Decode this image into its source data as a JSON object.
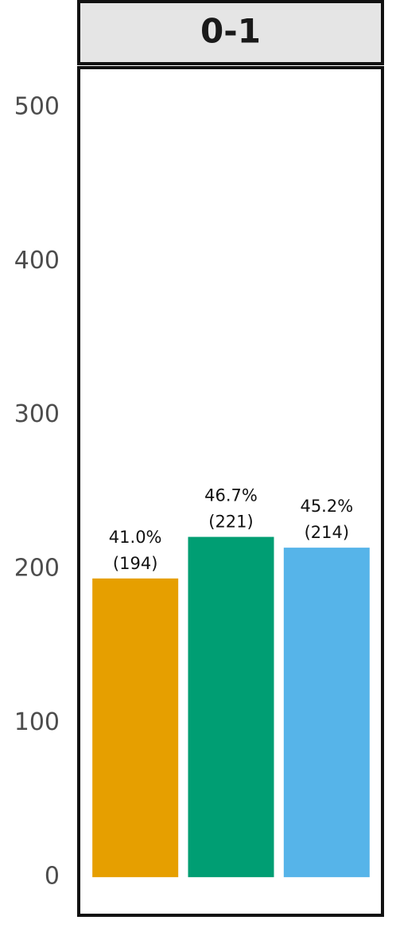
{
  "chart_data": {
    "type": "bar",
    "facet_label": "0-1",
    "categories": [
      null,
      null,
      null
    ],
    "values": [
      194,
      221,
      214
    ],
    "value_labels": [
      "(194)",
      "(221)",
      "(214)"
    ],
    "percent_labels": [
      "41.0%",
      "46.7%",
      "45.2%"
    ],
    "colors": [
      "#e69f00",
      "#009e73",
      "#56b4e9"
    ],
    "ylim": [
      -23.7,
      524.7
    ],
    "yticks": [
      0,
      100,
      200,
      300,
      400,
      500
    ],
    "grid": false
  }
}
